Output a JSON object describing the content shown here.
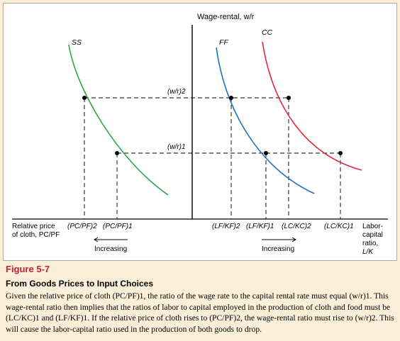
{
  "diagram": {
    "y_axis_label": "Wage-rental, w/r",
    "x_label_left": [
      "Relative price",
      "of cloth, PC/PF"
    ],
    "x_label_right": [
      "Labor-",
      "capital",
      "ratio,",
      "L/K"
    ],
    "curve_labels": {
      "ss": "SS",
      "ff": "FF",
      "cc": "CC"
    },
    "wage_levels": {
      "level2": "(w/r)2",
      "level1": "(w/r)1"
    },
    "left_ticks": [
      "(PC/PF)2",
      "(PC/PF)1"
    ],
    "right_ticks": [
      "(LF/KF)2",
      "(LF/KF)1",
      "(LC/KC)2",
      "(LC/KC)1"
    ],
    "arrow_labels": {
      "left": "Increasing",
      "right": "Increasing"
    },
    "colors": {
      "ss": "#27a744",
      "ff": "#1a6fc4",
      "cc": "#e0283a",
      "panel_bg": "#fcefd9",
      "figure_label": "#c8202a"
    }
  },
  "caption": {
    "figure_label": "Figure 5-7",
    "title": "From Goods Prices to Input Choices",
    "body": "Given the relative price of cloth (PC/PF)1, the ratio of the wage rate to the capital rental rate must equal (w/r)1. This wage-rental ratio then implies that the ratios of labor to capital employed in the production of cloth and food must be (LC/KC)1 and (LF/KF)1. If the relative price of cloth rises to (PC/PF)2, the wage-rental ratio must rise to (w/r)2. This will cause the labor-capital ratio used in the production of both goods to drop."
  }
}
